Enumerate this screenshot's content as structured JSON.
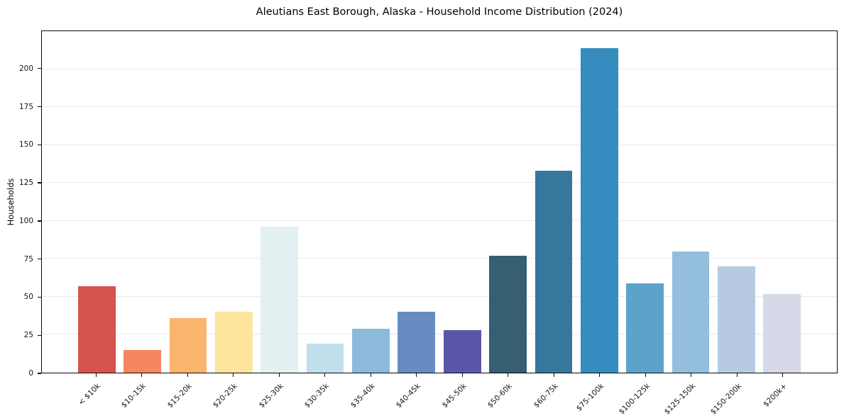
{
  "chart_data": {
    "type": "bar",
    "title": "Aleutians East Borough, Alaska - Household Income Distribution (2024)",
    "xlabel": "",
    "ylabel": "Households",
    "ylim": [
      0,
      225
    ],
    "yticks": [
      0,
      25,
      50,
      75,
      100,
      125,
      150,
      175,
      200
    ],
    "grid": "horizontal",
    "legend": "none",
    "background": "#ffffff",
    "categories": [
      "< $10k",
      "$10-15k",
      "$15-20k",
      "$20-25k",
      "$25-30k",
      "$30-35k",
      "$35-40k",
      "$40-45k",
      "$45-50k",
      "$50-60k",
      "$60-75k",
      "$75-100k",
      "$100-125k",
      "$125-150k",
      "$150-200k",
      "$200k+"
    ],
    "values": [
      57,
      15,
      36,
      40,
      96,
      19,
      29,
      40,
      28,
      77,
      133,
      214,
      59,
      80,
      70,
      52
    ],
    "bar_colors": [
      "#d6534f",
      "#f4875f",
      "#fbb46c",
      "#fde59e",
      "#e3f1f2",
      "#c2dfee",
      "#8dbadb",
      "#688cc2",
      "#5a57a8",
      "#365f72",
      "#35789b",
      "#368cbe",
      "#5ca3c9",
      "#93bedc",
      "#b6cae2",
      "#d7d9e8"
    ]
  }
}
